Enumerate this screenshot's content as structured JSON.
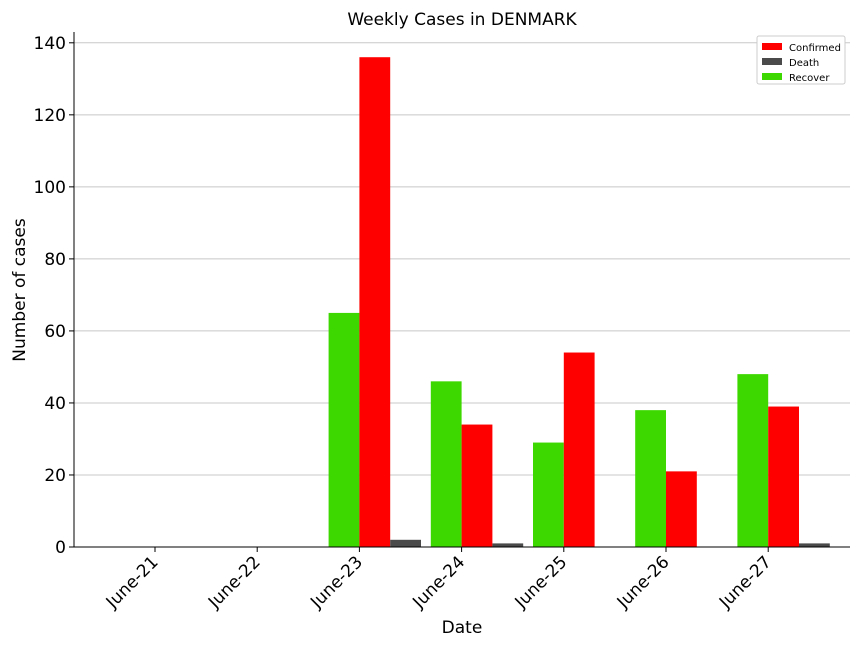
{
  "chart_data": {
    "type": "bar",
    "title": "Weekly Cases in DENMARK",
    "xlabel": "Date",
    "ylabel": "Number of cases",
    "categories": [
      "June-21",
      "June-22",
      "June-23",
      "June-24",
      "June-25",
      "June-26",
      "June-27"
    ],
    "series": [
      {
        "name": "Recover",
        "color": "#3cd800",
        "values": [
          0,
          0,
          65,
          46,
          29,
          38,
          48
        ]
      },
      {
        "name": "Confirmed",
        "color": "#ff0000",
        "values": [
          0,
          0,
          136,
          34,
          54,
          21,
          39
        ]
      },
      {
        "name": "Death",
        "color": "#4a4a4a",
        "values": [
          0,
          0,
          2,
          1,
          0,
          0,
          1
        ]
      }
    ],
    "legend_order": [
      "Confirmed",
      "Death",
      "Recover"
    ],
    "yticks": [
      0,
      20,
      40,
      60,
      80,
      100,
      120,
      140
    ],
    "ylim": [
      0,
      143
    ],
    "grid": "horizontal",
    "legend_position": "top-right"
  }
}
